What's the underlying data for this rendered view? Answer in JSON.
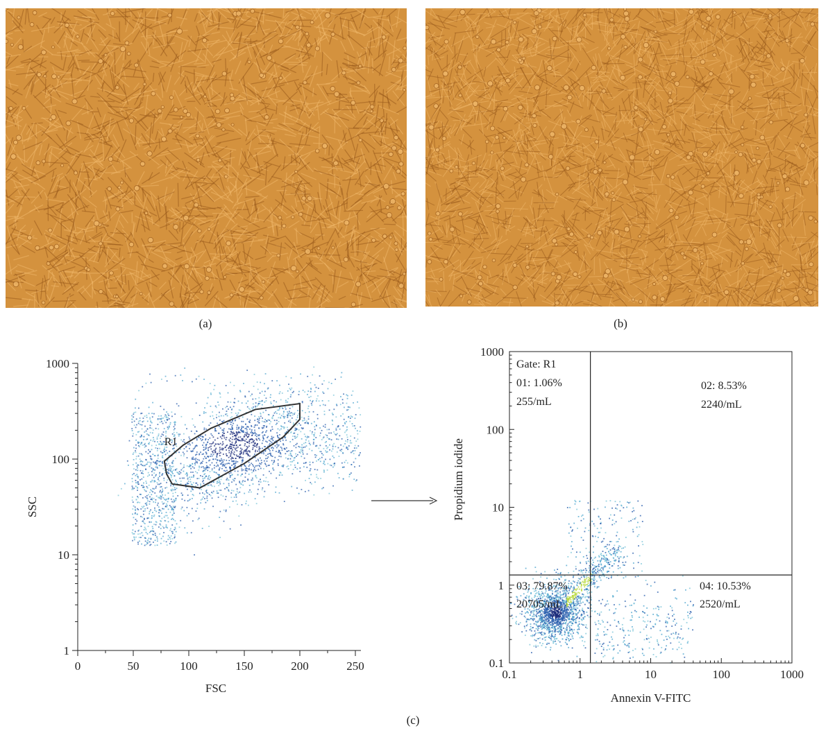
{
  "panels": {
    "a_label": "(a)",
    "b_label": "(b)",
    "c_label": "(c)"
  },
  "micrograph": {
    "color": "#d4923e",
    "dark_color": "#9a5b1c",
    "light_color": "#f0b86a"
  },
  "colors": {
    "density_low": "#4fa6cf",
    "density_mid": "#2b5fae",
    "density_high": "#1a2a7a",
    "density_peak": "#b6d83a",
    "gate_stroke": "#333333"
  },
  "chart_data": [
    {
      "type": "scatter",
      "name": "fsc-ssc-density",
      "xlabel": "FSC",
      "ylabel": "SSC",
      "xlim": [
        0,
        255
      ],
      "ylim": [
        1,
        1000
      ],
      "yscale": "log",
      "x_ticks": [
        "0",
        "50",
        "100",
        "150",
        "200",
        "250"
      ],
      "y_ticks": [
        "1",
        "10",
        "100",
        "1000"
      ],
      "gate": {
        "label": "R1",
        "polygon": [
          [
            80,
            70
          ],
          [
            78,
            95
          ],
          [
            95,
            140
          ],
          [
            120,
            210
          ],
          [
            160,
            330
          ],
          [
            200,
            380
          ],
          [
            200,
            260
          ],
          [
            185,
            170
          ],
          [
            150,
            90
          ],
          [
            110,
            50
          ],
          [
            85,
            55
          ]
        ]
      },
      "density": {
        "centers": [
          [
            140,
            150
          ],
          [
            110,
            100
          ],
          [
            60,
            120
          ],
          [
            50,
            40
          ],
          [
            170,
            230
          ],
          [
            215,
            350
          ]
        ],
        "point_count": 2600
      }
    },
    {
      "type": "scatter",
      "name": "annexin-pi-quadrants",
      "xlabel": "Annexin V-FITC",
      "ylabel": "Propidium iodide",
      "xlim": [
        0.1,
        1000
      ],
      "ylim": [
        0.1,
        1000
      ],
      "xscale": "log",
      "yscale": "log",
      "x_ticks": [
        "0.1",
        "1",
        "10",
        "100",
        "1000"
      ],
      "y_ticks": [
        "0.1",
        "1",
        "10",
        "100",
        "1000"
      ],
      "quadrant_divider": {
        "x": 1.4,
        "y": 1.35
      },
      "gate_label": "Gate: R1",
      "quadrants": [
        {
          "id": "01",
          "percent_label": "01: 1.06%",
          "count_label": "255/mL"
        },
        {
          "id": "02",
          "percent_label": "02: 8.53%",
          "count_label": "2240/mL"
        },
        {
          "id": "03",
          "percent_label": "03: 79.87%",
          "count_label": "20705/mL"
        },
        {
          "id": "04",
          "percent_label": "04: 10.53%",
          "count_label": "2520/mL"
        }
      ]
    }
  ]
}
